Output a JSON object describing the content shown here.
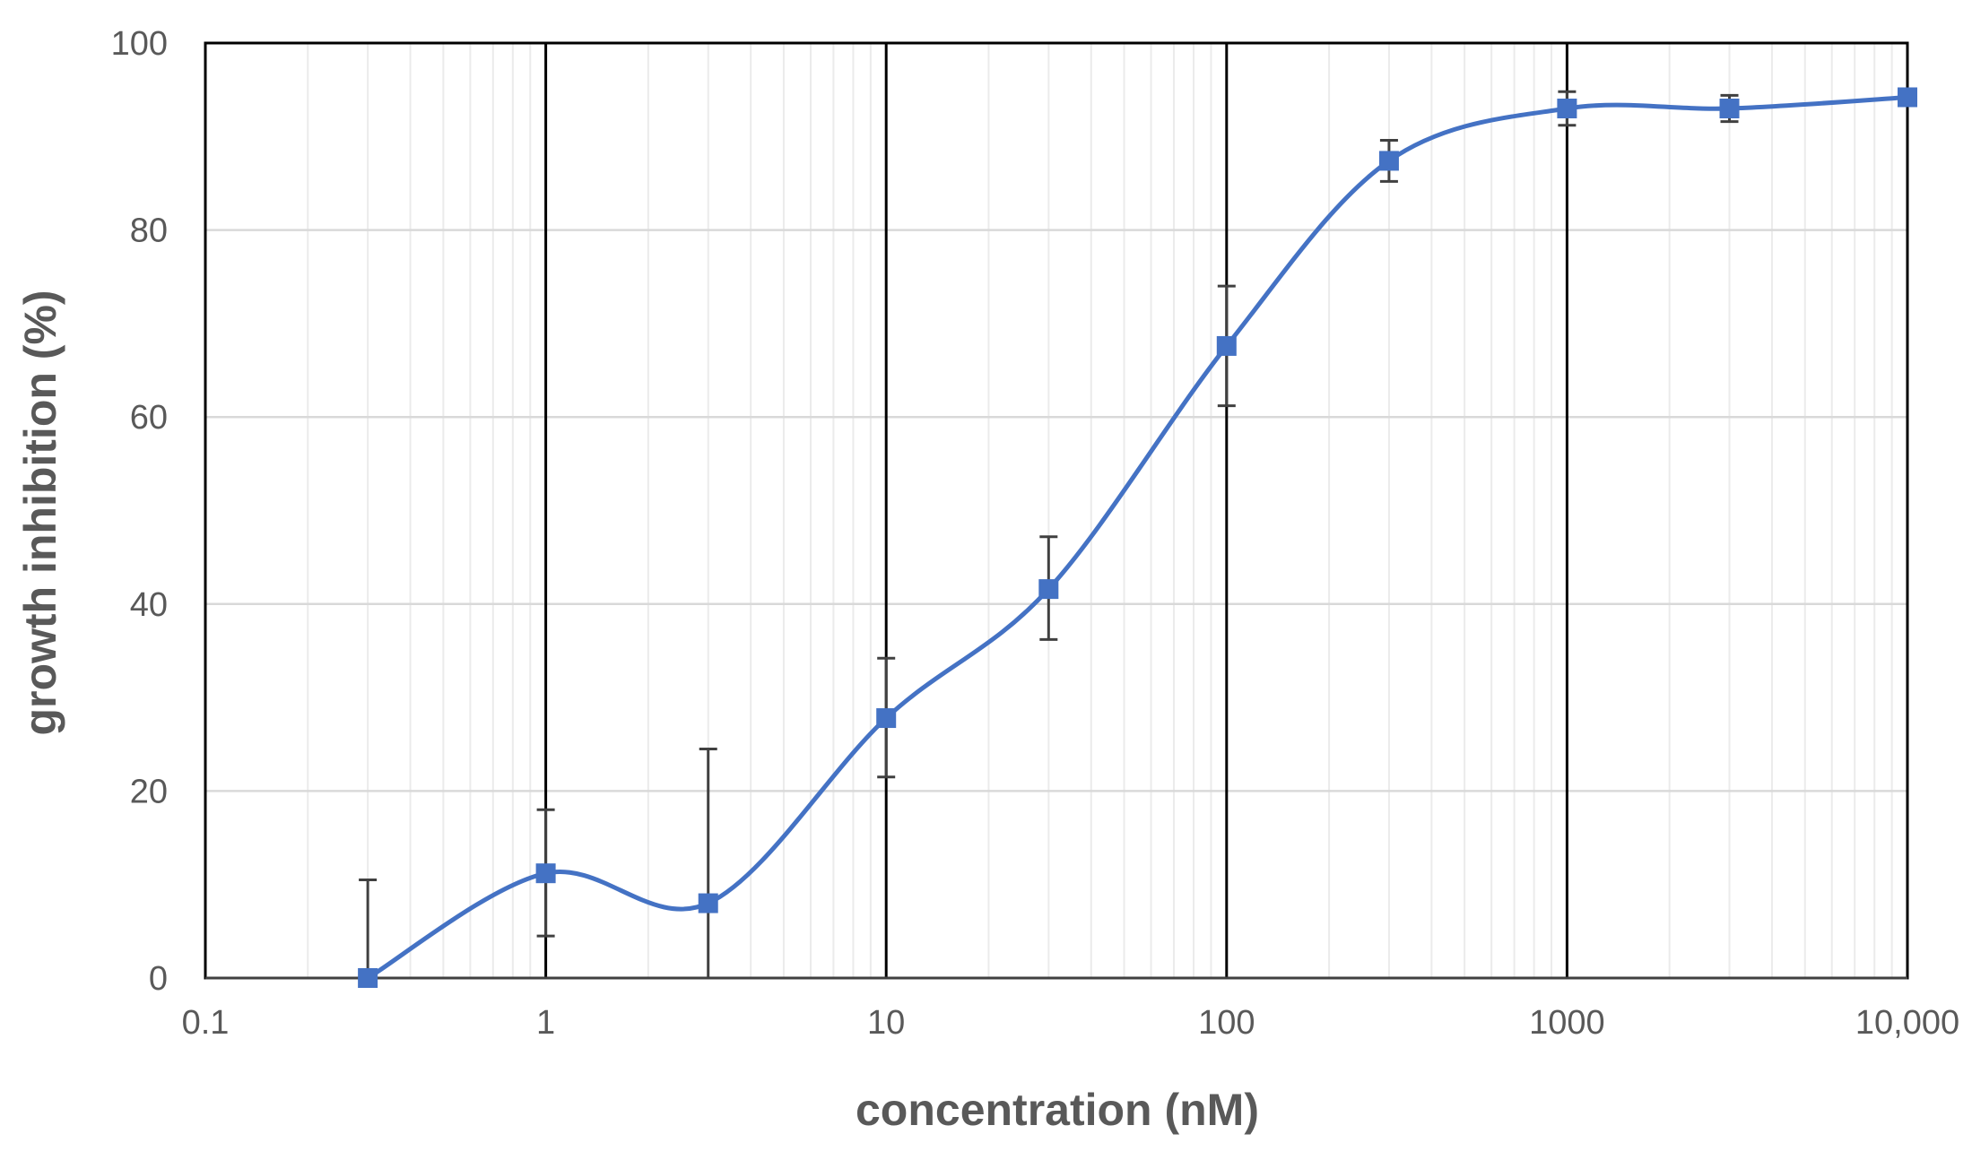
{
  "chart_data": {
    "type": "line",
    "title": "",
    "xlabel": "concentration (nM)",
    "ylabel": "growth inhibition (%)",
    "x_scale": "log",
    "xlim": [
      0.1,
      10000
    ],
    "ylim": [
      0,
      100
    ],
    "x_ticks": [
      0.1,
      1,
      10,
      100,
      1000,
      10000
    ],
    "x_tick_labels": [
      "0.1",
      "1",
      "10",
      "100",
      "1000",
      "10,000"
    ],
    "y_ticks": [
      0,
      20,
      40,
      60,
      80,
      100
    ],
    "y_tick_labels": [
      "0",
      "20",
      "40",
      "60",
      "80",
      "100"
    ],
    "grid": true,
    "legend": "none",
    "series": [
      {
        "color": "#4472C4",
        "marker": "square",
        "smooth": true,
        "points": [
          {
            "x": 0.3,
            "y": 0,
            "err_low": 0,
            "err_high": 10.5
          },
          {
            "x": 1,
            "y": 11.2,
            "err_low": 4.5,
            "err_high": 18
          },
          {
            "x": 3,
            "y": 8,
            "err_low": 0,
            "err_high": 24.5
          },
          {
            "x": 10,
            "y": 27.8,
            "err_low": 21.5,
            "err_high": 34.2
          },
          {
            "x": 30,
            "y": 41.6,
            "err_low": 36.2,
            "err_high": 47.2
          },
          {
            "x": 100,
            "y": 67.6,
            "err_low": 61.2,
            "err_high": 74
          },
          {
            "x": 300,
            "y": 87.4,
            "err_low": 85.2,
            "err_high": 89.6
          },
          {
            "x": 1000,
            "y": 93,
            "err_low": 91.2,
            "err_high": 94.8
          },
          {
            "x": 3000,
            "y": 93,
            "err_low": 91.6,
            "err_high": 94.4
          },
          {
            "x": 10000,
            "y": 94.2,
            "err_low": 94.2,
            "err_high": 94.2
          }
        ]
      }
    ],
    "colors": {
      "major_vgrid": "#000000",
      "minor_grid": "#ebebeb",
      "hgrid": "#d9d9d9",
      "errbar": "#404040",
      "text": "#595959"
    }
  }
}
